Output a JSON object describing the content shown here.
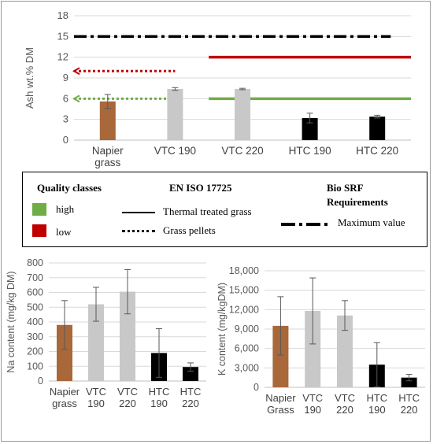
{
  "colors": {
    "napier": "#a8683a",
    "vtc": "#c8c8c8",
    "htc": "#000000",
    "high": "#70ad47",
    "low": "#c00000",
    "grid": "#d9d9d9",
    "axis": "#595959"
  },
  "chart_data": [
    {
      "type": "bar",
      "ylabel": "Ash wt.% DM",
      "ylim": [
        0,
        18
      ],
      "yticks": [
        "0",
        "3",
        "6",
        "9",
        "12",
        "15",
        "18"
      ],
      "categories": [
        "Napier grass",
        "VTC 190",
        "VTC 220",
        "HTC 190",
        "HTC 220"
      ],
      "category_labels": [
        [
          "Napier",
          "grass"
        ],
        [
          "VTC 190"
        ],
        [
          "VTC 220"
        ],
        [
          "HTC 190"
        ],
        [
          "HTC 220"
        ]
      ],
      "values": [
        5.6,
        7.4,
        7.4,
        3.2,
        3.4
      ],
      "errors": [
        1.0,
        0.2,
        0.1,
        0.7,
        0.2
      ],
      "bar_colors": [
        "napier",
        "vtc",
        "vtc",
        "htc",
        "htc"
      ],
      "grid": true,
      "reference_lines": [
        {
          "value": 15,
          "style": "dash-dot",
          "color": "#000000",
          "from": 0,
          "to": 4.7
        },
        {
          "value": 10,
          "style": "dotted",
          "color": "#c00000",
          "from": 0,
          "to": 1.5
        },
        {
          "value": 6,
          "style": "dotted",
          "color": "#70ad47",
          "from": 0,
          "to": 1.5
        },
        {
          "value": 12,
          "style": "solid",
          "color": "#c00000",
          "from": 2,
          "to": 5
        },
        {
          "value": 6,
          "style": "solid",
          "color": "#70ad47",
          "from": 2,
          "to": 5
        }
      ]
    },
    {
      "type": "bar",
      "ylabel": "Na content (mg/kg DM)",
      "ylim": [
        0,
        800
      ],
      "yticks": [
        "0",
        "100",
        "200",
        "300",
        "400",
        "500",
        "600",
        "700",
        "800"
      ],
      "categories": [
        "Napier grass",
        "VTC 190",
        "VTC 220",
        "HTC 190",
        "HTC 220"
      ],
      "category_labels": [
        [
          "Napier",
          "grass"
        ],
        [
          "VTC",
          "190"
        ],
        [
          "VTC",
          "220"
        ],
        [
          "HTC",
          "190"
        ],
        [
          "HTC",
          "220"
        ]
      ],
      "values": [
        380,
        520,
        605,
        190,
        95
      ],
      "errors": [
        165,
        115,
        150,
        165,
        28
      ],
      "bar_colors": [
        "napier",
        "vtc",
        "vtc",
        "htc",
        "htc"
      ],
      "grid": true
    },
    {
      "type": "bar",
      "ylabel": "K content (mg/kgDM)",
      "ylim": [
        0,
        18000
      ],
      "yticks": [
        "0",
        "3,000",
        "6,000",
        "9,000",
        "12,000",
        "15,000",
        "18,000"
      ],
      "categories": [
        "Napier Grass",
        "VTC 190",
        "VTC 220",
        "HTC 190",
        "HTC 220"
      ],
      "category_labels": [
        [
          "Napier",
          "Grass"
        ],
        [
          "VTC",
          "190"
        ],
        [
          "VTC",
          "220"
        ],
        [
          "HTC",
          "190"
        ],
        [
          "HTC",
          "220"
        ]
      ],
      "values": [
        9500,
        11800,
        11100,
        3500,
        1500
      ],
      "errors": [
        4500,
        5100,
        2300,
        3400,
        500
      ],
      "bar_colors": [
        "napier",
        "vtc",
        "vtc",
        "htc",
        "htc"
      ],
      "grid": true
    }
  ],
  "legend": {
    "quality_title": "Quality classes",
    "iso_title": "EN ISO 17725",
    "srf_title_line1": "Bio SRF",
    "srf_title_line2": "Requirements",
    "high_label": "high",
    "low_label": "low",
    "thermal_label": "Thermal treated grass",
    "pellets_label": "Grass pellets",
    "max_label": "Maximum value"
  }
}
